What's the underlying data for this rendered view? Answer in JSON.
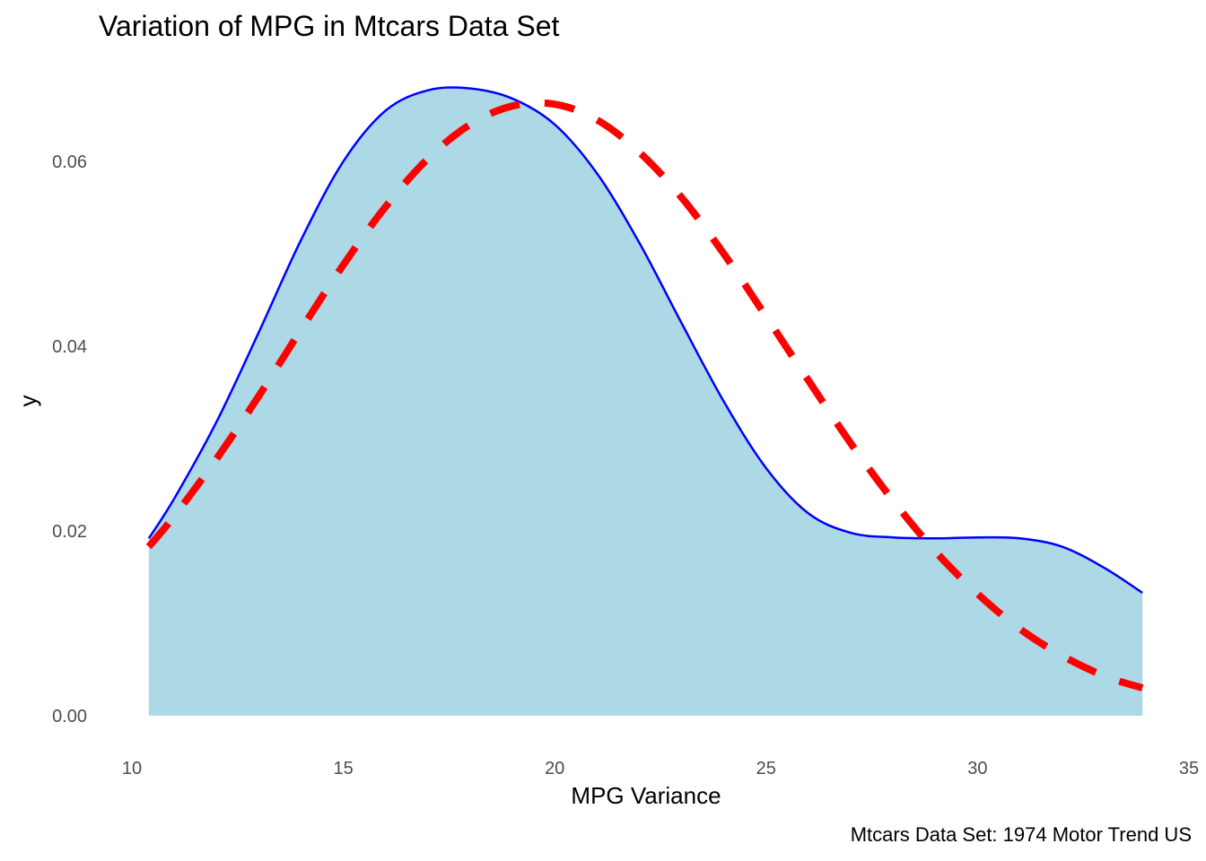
{
  "chart_data": {
    "type": "area",
    "title": "Variation of MPG in Mtcars Data Set",
    "xlabel": "MPG Variance",
    "ylabel": "y",
    "caption": "Mtcars Data Set: 1974 Motor Trend US",
    "xlim": [
      10,
      35
    ],
    "ylim": [
      0,
      0.068
    ],
    "x_ticks": [
      "10",
      "15",
      "20",
      "25",
      "30",
      "35"
    ],
    "y_ticks": [
      "0.00",
      "0.02",
      "0.04",
      "0.06"
    ],
    "grid": false,
    "legend": "none",
    "series": [
      {
        "style": "filled density, solid outline",
        "fill_color": "#add8e6",
        "line_color": "#0000ff",
        "x": [
          10.4,
          11,
          12,
          13,
          14,
          15,
          16,
          17,
          18,
          19,
          20,
          21,
          22,
          23,
          24,
          25,
          26,
          27,
          28,
          29,
          30,
          31,
          32,
          33,
          33.9
        ],
        "y": [
          0.0192,
          0.0235,
          0.0318,
          0.0415,
          0.0515,
          0.06,
          0.0655,
          0.0677,
          0.0679,
          0.0668,
          0.064,
          0.0587,
          0.0512,
          0.0425,
          0.034,
          0.0268,
          0.0219,
          0.0198,
          0.0193,
          0.0192,
          0.0193,
          0.0192,
          0.0183,
          0.016,
          0.0133
        ]
      },
      {
        "style": "dashed normal curve",
        "line_color": "#ff0000",
        "x": [
          10.4,
          11,
          12,
          13,
          14,
          15,
          16,
          17,
          18,
          19,
          20,
          21,
          22,
          23,
          24,
          25,
          26,
          27,
          28,
          29,
          30,
          31,
          32,
          33,
          33.9
        ],
        "y": [
          0.0183,
          0.0216,
          0.0278,
          0.0346,
          0.0418,
          0.0488,
          0.0551,
          0.0603,
          0.064,
          0.066,
          0.0662,
          0.0645,
          0.061,
          0.0561,
          0.05,
          0.0432,
          0.0363,
          0.0295,
          0.0233,
          0.0178,
          0.0132,
          0.0094,
          0.0065,
          0.0043,
          0.003
        ]
      }
    ]
  }
}
